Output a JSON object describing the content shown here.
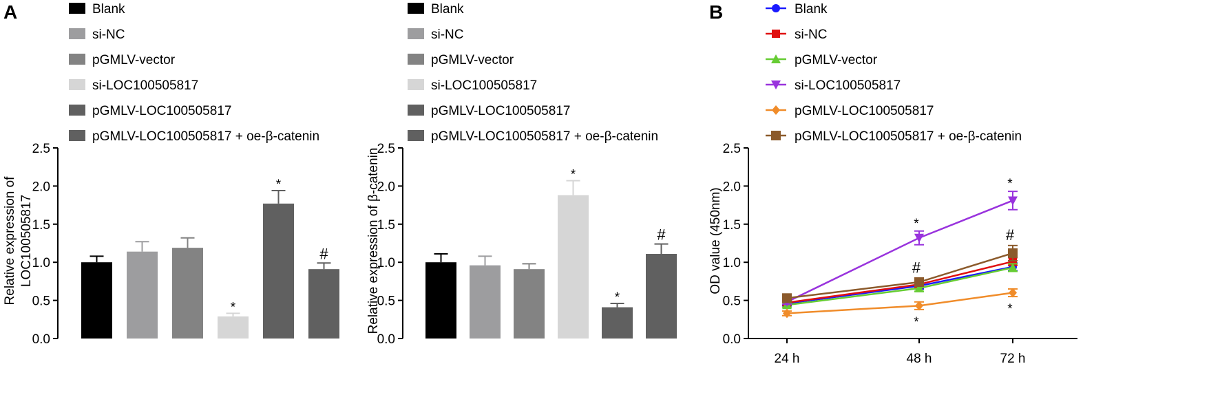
{
  "panel_labels": [
    "A",
    "B"
  ],
  "chart_data": [
    {
      "type": "bar",
      "panel": "A",
      "ylabel": "Relative expression of LOC100505817",
      "ylabel_lines": [
        "Relative expression of",
        "LOC100505817"
      ],
      "ylim": [
        0,
        2.5
      ],
      "yticks": [
        "0.0",
        "0.5",
        "1.0",
        "1.5",
        "2.0",
        "2.5"
      ],
      "categories": [
        "Blank",
        "si-NC",
        "pGMLV-vector",
        "si-LOC100505817",
        "pGMLV-LOC100505817",
        "pGMLV-LOC100505817 + oe-β-catenin"
      ],
      "colors": [
        "#000000",
        "#9d9d9f",
        "#838383",
        "#d6d6d6",
        "#606060",
        "#606060"
      ],
      "values": [
        1.0,
        1.14,
        1.19,
        0.29,
        1.77,
        0.91
      ],
      "errors": [
        0.08,
        0.13,
        0.13,
        0.04,
        0.17,
        0.08
      ],
      "annotations": [
        "",
        "",
        "",
        "*",
        "*",
        "#"
      ],
      "legend_position": "top"
    },
    {
      "type": "bar",
      "panel": "A",
      "ylabel": "Relative expression of β-catenin",
      "ylabel_lines": [
        "Relative expression of β-catenin"
      ],
      "ylim": [
        0,
        2.5
      ],
      "yticks": [
        "0.0",
        "0.5",
        "1.0",
        "1.5",
        "2.0",
        "2.5"
      ],
      "categories": [
        "Blank",
        "si-NC",
        "pGMLV-vector",
        "si-LOC100505817",
        "pGMLV-LOC100505817",
        "pGMLV-LOC100505817 + oe-β-catenin"
      ],
      "colors": [
        "#000000",
        "#9d9d9f",
        "#838383",
        "#d6d6d6",
        "#606060",
        "#606060"
      ],
      "values": [
        1.0,
        0.96,
        0.91,
        1.88,
        0.41,
        1.11
      ],
      "errors": [
        0.11,
        0.12,
        0.07,
        0.19,
        0.05,
        0.13
      ],
      "annotations": [
        "",
        "",
        "",
        "*",
        "*",
        "#"
      ],
      "legend_position": "top"
    },
    {
      "type": "line",
      "panel": "B",
      "ylabel": "OD value (450nm)",
      "ylim": [
        0,
        2.5
      ],
      "yticks": [
        "0.0",
        "0.5",
        "1.0",
        "1.5",
        "2.0",
        "2.5"
      ],
      "x": [
        "24 h",
        "48 h",
        "72 h"
      ],
      "series": [
        {
          "name": "Blank",
          "color": "#1a1aff",
          "marker": "circle",
          "values": [
            0.46,
            0.69,
            0.94
          ],
          "errors": [
            0.03,
            0.04,
            0.05
          ]
        },
        {
          "name": "si-NC",
          "color": "#e01010",
          "marker": "square",
          "values": [
            0.47,
            0.71,
            1.01
          ],
          "errors": [
            0.03,
            0.04,
            0.05
          ]
        },
        {
          "name": "pGMLV-vector",
          "color": "#66cc33",
          "marker": "triangle-up",
          "values": [
            0.44,
            0.66,
            0.93
          ],
          "errors": [
            0.03,
            0.04,
            0.05
          ]
        },
        {
          "name": "si-LOC100505817",
          "color": "#9933dd",
          "marker": "triangle-down",
          "values": [
            0.48,
            1.32,
            1.81
          ],
          "errors": [
            0.03,
            0.09,
            0.12
          ]
        },
        {
          "name": "pGMLV-LOC100505817",
          "color": "#f08c2a",
          "marker": "diamond",
          "values": [
            0.33,
            0.43,
            0.6
          ],
          "errors": [
            0.03,
            0.05,
            0.05
          ]
        },
        {
          "name": "pGMLV-LOC100505817 + oe-β-catenin",
          "color": "#8b5a2b",
          "marker": "square-big",
          "values": [
            0.53,
            0.74,
            1.12
          ],
          "errors": [
            0.03,
            0.05,
            0.1
          ]
        }
      ],
      "annotations": [
        {
          "x": "48 h",
          "text": "*",
          "series": "si-LOC100505817",
          "side": "above"
        },
        {
          "x": "72 h",
          "text": "*",
          "series": "si-LOC100505817",
          "side": "above"
        },
        {
          "x": "48 h",
          "text": "#",
          "series": "pGMLV-LOC100505817 + oe-β-catenin",
          "side": "above"
        },
        {
          "x": "72 h",
          "text": "#",
          "series": "pGMLV-LOC100505817 + oe-β-catenin",
          "side": "above"
        },
        {
          "x": "48 h",
          "text": "*",
          "series": "pGMLV-LOC100505817",
          "side": "below"
        },
        {
          "x": "72 h",
          "text": "*",
          "series": "pGMLV-LOC100505817",
          "side": "below"
        }
      ],
      "legend_position": "top"
    }
  ]
}
